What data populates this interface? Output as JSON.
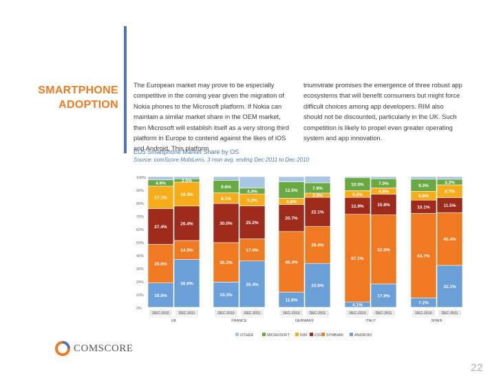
{
  "slide": {
    "title_line1": "SMARTPHONE",
    "title_line2": "ADOPTION",
    "col1_text": "The European market may prove to be especially competitive in the coming year given the migration of Nokia phones to the Microsoft platform. If Nokia can maintain a similar market share in the OEM market, then Microsoft will establish itself as a very strong third platform in Europe to contend against the likes of iOS and Android. This platform",
    "col2_text": "triumvirate promises the emergence of three robust app ecosystems that will benefit consumers but might force difficult choices among app developers. RIM also should not be discounted, particularly in the UK. Such competition is likely to propel even greater operating system and app innovation.",
    "page_number": "22",
    "logo_text": "COMSCORE"
  },
  "chart_data": {
    "type": "bar",
    "stacked": true,
    "title": "EU5 Smartphone Market Share by OS",
    "source": "Source: comScore MobiLens, 3 mon avg. ending Dec-2011 to Dec-2010",
    "ylim": [
      0,
      100
    ],
    "yticks": [
      "0%",
      "10%",
      "20%",
      "30%",
      "40%",
      "50%",
      "60%",
      "70%",
      "80%",
      "90%",
      "100%"
    ],
    "categories": [
      "DEC-2010",
      "DEC-2011",
      "DEC-2010",
      "DEC-2011",
      "DEC-2010",
      "DEC-2011",
      "DEC-2010",
      "DEC-2011",
      "DEC-2010",
      "DEC-2011"
    ],
    "groups": [
      "UK",
      "FRANCE",
      "GERMANY",
      "ITALY",
      "SPAIN"
    ],
    "series": [
      {
        "name": "ANDROID",
        "color": "#6a9fd8",
        "values": [
          18.6,
          36.6,
          19.3,
          35.4,
          11.6,
          33.6,
          4.1,
          17.9,
          7.2,
          32.1
        ],
        "labels": [
          "18.6%",
          "36.6%",
          "19.3%",
          "35.4%",
          "11.6%",
          "33.6%",
          "4.1%",
          "17.9%",
          "7.2%",
          "32.1%"
        ]
      },
      {
        "name": "SYMBIAN",
        "color": "#f07a22",
        "values": [
          29.6,
          14.5,
          30.2,
          17.0,
          46.4,
          28.4,
          67.1,
          52.8,
          64.7,
          40.4
        ],
        "labels": [
          "29.6%",
          "14.5%",
          "30.2%",
          "17.0%",
          "46.4%",
          "28.4%",
          "67.1%",
          "52.8%",
          "64.7%",
          "40.4%"
        ]
      },
      {
        "name": "iOS",
        "color": "#9e2a1c",
        "values": [
          27.4,
          26.4,
          30.0,
          25.2,
          20.7,
          22.1,
          12.9,
          15.8,
          10.1,
          11.5
        ],
        "labels": [
          "27.4%",
          "26.4%",
          "30.0%",
          "25.2%",
          "20.7%",
          "22.1%",
          "12.9%",
          "15.8%",
          "10.1%",
          "11.5%"
        ]
      },
      {
        "name": "RIM",
        "color": "#f7ad1a",
        "values": [
          17.1,
          18.3,
          8.1,
          9.2,
          4.8,
          3.3,
          5.2,
          4.9,
          6.8,
          9.7
        ],
        "labels": [
          "17.1%",
          "18.3%",
          "8.1%",
          "9.2%",
          "4.8%",
          "3.3%",
          "5.2%",
          "4.9%",
          "6.8%",
          "9.7%"
        ]
      },
      {
        "name": "MICROSOFT",
        "color": "#6aa843",
        "values": [
          4.9,
          2.5,
          9.6,
          4.4,
          12.5,
          7.9,
          10.0,
          7.0,
          9.3,
          4.3
        ],
        "labels": [
          "4.9%",
          "2.5%",
          "9.6%",
          "4.4%",
          "12.5%",
          "7.9%",
          "10.0%",
          "7.0%",
          "9.3%",
          "4.3%"
        ]
      },
      {
        "name": "OTHER",
        "color": "#a9c6e3",
        "values": [
          2.4,
          1.7,
          2.8,
          8.8,
          4.0,
          5.0,
          0.7,
          1.6,
          1.9,
          2.0
        ],
        "labels": [
          "",
          "",
          "",
          "",
          "",
          "",
          "",
          "",
          "",
          ""
        ]
      }
    ],
    "legend_order": [
      "OTHER",
      "MICROSOFT",
      "RIM",
      "iOS",
      "SYMBIAN",
      "ANDROID"
    ],
    "legend_position": "bottom"
  }
}
